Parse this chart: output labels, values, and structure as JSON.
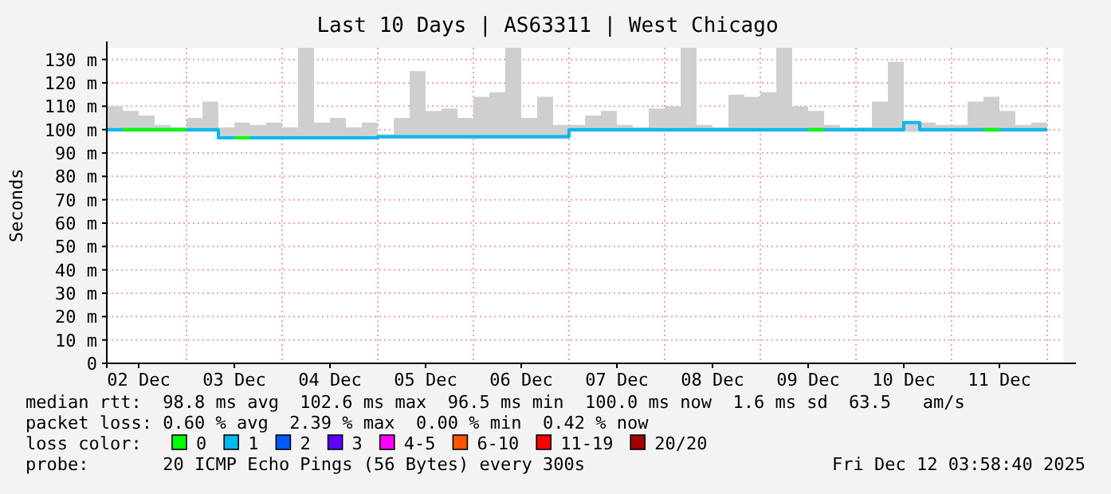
{
  "chart_data": {
    "type": "step",
    "title": "Last 10 Days | AS63311 | West Chicago",
    "ylabel": "Seconds",
    "legend_title": "loss color:",
    "x": [
      "2025-12-02T04:00",
      "2025-12-02T08:00",
      "2025-12-02T12:00",
      "2025-12-02T16:00",
      "2025-12-02T20:00",
      "2025-12-03T00:00",
      "2025-12-03T04:00",
      "2025-12-03T08:00",
      "2025-12-03T12:00",
      "2025-12-03T16:00",
      "2025-12-03T20:00",
      "2025-12-04T00:00",
      "2025-12-04T04:00",
      "2025-12-04T08:00",
      "2025-12-04T12:00",
      "2025-12-04T16:00",
      "2025-12-04T20:00",
      "2025-12-05T00:00",
      "2025-12-05T04:00",
      "2025-12-05T08:00",
      "2025-12-05T12:00",
      "2025-12-05T16:00",
      "2025-12-05T20:00",
      "2025-12-06T00:00",
      "2025-12-06T04:00",
      "2025-12-06T08:00",
      "2025-12-06T12:00",
      "2025-12-06T16:00",
      "2025-12-06T20:00",
      "2025-12-07T00:00",
      "2025-12-07T04:00",
      "2025-12-07T08:00",
      "2025-12-07T12:00",
      "2025-12-07T16:00",
      "2025-12-07T20:00",
      "2025-12-08T00:00",
      "2025-12-08T04:00",
      "2025-12-08T08:00",
      "2025-12-08T12:00",
      "2025-12-08T16:00",
      "2025-12-08T20:00",
      "2025-12-09T00:00",
      "2025-12-09T04:00",
      "2025-12-09T08:00",
      "2025-12-09T12:00",
      "2025-12-09T16:00",
      "2025-12-09T20:00",
      "2025-12-10T00:00",
      "2025-12-10T04:00",
      "2025-12-10T08:00",
      "2025-12-10T12:00",
      "2025-12-10T16:00",
      "2025-12-10T20:00",
      "2025-12-11T00:00",
      "2025-12-11T04:00",
      "2025-12-11T08:00",
      "2025-12-11T12:00",
      "2025-12-11T16:00",
      "2025-12-11T20:00",
      "2025-12-12T00:00"
    ],
    "series": [
      {
        "name": "0",
        "color": "#00ff00",
        "values": [
          null,
          100,
          100,
          100,
          100,
          100,
          null,
          null,
          96.5,
          96.5,
          null,
          null,
          null,
          null,
          null,
          null,
          null,
          null,
          null,
          null,
          null,
          null,
          null,
          null,
          null,
          null,
          null,
          null,
          null,
          null,
          null,
          null,
          null,
          null,
          null,
          null,
          null,
          null,
          null,
          null,
          null,
          null,
          null,
          null,
          100,
          100,
          null,
          null,
          null,
          null,
          null,
          null,
          null,
          null,
          null,
          100,
          100,
          null,
          null,
          null
        ]
      },
      {
        "name": "1",
        "color": "#00b8f0",
        "values": [
          100,
          100,
          100,
          100,
          100,
          100,
          100,
          96.5,
          96.5,
          96.5,
          96.5,
          96.5,
          96.5,
          96.5,
          96.5,
          96.5,
          96.5,
          97,
          97,
          97,
          97,
          97,
          97,
          97,
          97,
          97,
          97,
          97,
          97,
          100,
          100,
          100,
          100,
          100,
          100,
          100,
          100,
          100,
          100,
          100,
          100,
          100,
          100,
          100,
          100,
          100,
          100,
          100,
          100,
          100,
          103,
          100,
          100,
          100,
          100,
          100,
          100,
          100,
          100,
          100
        ],
        "lower": [
          99,
          99,
          99,
          99,
          99,
          99,
          99,
          96,
          96,
          96,
          96,
          96,
          96,
          96,
          96,
          96,
          96,
          96,
          96,
          96,
          96,
          96,
          96,
          96,
          96,
          96,
          96,
          96,
          96,
          99,
          99,
          99,
          99,
          99,
          99,
          99,
          99,
          99,
          99,
          99,
          99,
          99,
          99,
          99,
          99,
          99,
          99,
          99,
          99,
          99,
          99,
          99,
          99,
          99,
          99,
          99,
          99,
          99,
          99,
          99
        ],
        "upper": [
          110,
          108,
          106,
          102,
          101,
          105,
          112,
          101,
          103,
          102,
          103,
          101,
          135,
          103,
          105,
          101,
          103,
          98,
          105,
          125,
          108,
          109,
          105,
          114,
          116,
          135,
          105,
          114,
          102,
          102,
          106,
          108,
          102,
          101,
          109,
          110,
          135,
          102,
          101,
          115,
          114,
          116,
          135,
          110,
          108,
          102,
          101,
          101,
          112,
          129,
          103,
          103,
          102,
          102,
          112,
          114,
          108,
          102,
          103,
          101
        ]
      },
      {
        "name": "2",
        "color": "#0059ff",
        "values": [
          null,
          null,
          null,
          null,
          null,
          null,
          null,
          null,
          null,
          null,
          null,
          null,
          null,
          null,
          null,
          null,
          null,
          null,
          null,
          null,
          null,
          null,
          null,
          null,
          null,
          null,
          null,
          null,
          null,
          null,
          null,
          null,
          null,
          null,
          null,
          null,
          null,
          null,
          null,
          null,
          null,
          null,
          null,
          null,
          null,
          null,
          null,
          null,
          null,
          null,
          null,
          null,
          null,
          null,
          null,
          null,
          null,
          null,
          null,
          null
        ]
      },
      {
        "name": "3",
        "color": "#5e00ff",
        "values": [
          null,
          null,
          null,
          null,
          null,
          null,
          null,
          null,
          null,
          null,
          null,
          null,
          null,
          null,
          null,
          null,
          null,
          null,
          null,
          null,
          null,
          null,
          null,
          null,
          null,
          null,
          null,
          null,
          null,
          null,
          null,
          null,
          null,
          null,
          null,
          null,
          null,
          null,
          null,
          null,
          null,
          null,
          null,
          null,
          null,
          null,
          null,
          null,
          null,
          null,
          null,
          null,
          null,
          null,
          null,
          null,
          null,
          null,
          null,
          null
        ]
      },
      {
        "name": "4-5",
        "color": "#ff00ff",
        "values": [
          null,
          null,
          null,
          null,
          null,
          null,
          null,
          null,
          null,
          null,
          null,
          null,
          null,
          null,
          null,
          null,
          null,
          null,
          null,
          null,
          null,
          null,
          null,
          null,
          null,
          null,
          null,
          null,
          null,
          null,
          null,
          null,
          null,
          null,
          null,
          null,
          null,
          null,
          null,
          null,
          null,
          null,
          null,
          null,
          null,
          null,
          null,
          null,
          null,
          null,
          null,
          null,
          null,
          null,
          null,
          null,
          null,
          null,
          null,
          null
        ]
      },
      {
        "name": "6-10",
        "color": "#ff5500",
        "values": [
          null,
          null,
          null,
          null,
          null,
          null,
          null,
          null,
          null,
          null,
          null,
          null,
          null,
          null,
          null,
          null,
          null,
          null,
          null,
          null,
          null,
          null,
          null,
          null,
          null,
          null,
          null,
          null,
          null,
          null,
          null,
          null,
          null,
          null,
          null,
          null,
          null,
          null,
          null,
          null,
          null,
          null,
          null,
          null,
          null,
          null,
          null,
          null,
          null,
          null,
          null,
          null,
          null,
          null,
          null,
          null,
          null,
          null,
          null,
          null
        ]
      },
      {
        "name": "11-19",
        "color": "#ff0000",
        "values": [
          null,
          null,
          null,
          null,
          null,
          null,
          null,
          null,
          null,
          null,
          null,
          null,
          null,
          null,
          null,
          null,
          null,
          null,
          null,
          null,
          null,
          null,
          null,
          null,
          null,
          null,
          null,
          null,
          null,
          null,
          null,
          null,
          null,
          null,
          null,
          null,
          null,
          null,
          null,
          null,
          null,
          null,
          null,
          null,
          null,
          null,
          null,
          null,
          null,
          null,
          null,
          null,
          null,
          null,
          null,
          null,
          null,
          null,
          null,
          null
        ]
      },
      {
        "name": "20/20",
        "color": "#a10000",
        "values": [
          null,
          null,
          null,
          null,
          null,
          null,
          null,
          null,
          null,
          null,
          null,
          null,
          null,
          null,
          null,
          null,
          null,
          null,
          null,
          null,
          null,
          null,
          null,
          null,
          null,
          null,
          null,
          null,
          null,
          null,
          null,
          null,
          null,
          null,
          null,
          null,
          null,
          null,
          null,
          null,
          null,
          null,
          null,
          null,
          null,
          null,
          null,
          null,
          null,
          null,
          null,
          null,
          null,
          null,
          null,
          null,
          null,
          null,
          null,
          null
        ]
      }
    ],
    "xlim": [
      "2025-12-02T04:00",
      "2025-12-12T04:00"
    ],
    "xticks": [
      {
        "value": "2025-12-02T12:00",
        "label": "02 Dec"
      },
      {
        "value": "2025-12-03T12:00",
        "label": "03 Dec"
      },
      {
        "value": "2025-12-04T12:00",
        "label": "04 Dec"
      },
      {
        "value": "2025-12-05T12:00",
        "label": "05 Dec"
      },
      {
        "value": "2025-12-06T12:00",
        "label": "06 Dec"
      },
      {
        "value": "2025-12-07T12:00",
        "label": "07 Dec"
      },
      {
        "value": "2025-12-08T12:00",
        "label": "08 Dec"
      },
      {
        "value": "2025-12-09T12:00",
        "label": "09 Dec"
      },
      {
        "value": "2025-12-10T12:00",
        "label": "10 Dec"
      },
      {
        "value": "2025-12-11T12:00",
        "label": "11 Dec"
      }
    ],
    "ylim": [
      0,
      135
    ],
    "yticks": [
      0,
      {
        "value": 10,
        "label": "10 m"
      },
      {
        "value": 20,
        "label": "20 m"
      },
      {
        "value": 30,
        "label": "30 m"
      },
      {
        "value": 40,
        "label": "40 m"
      },
      {
        "value": 50,
        "label": "50 m"
      },
      {
        "value": 60,
        "label": "60 m"
      },
      {
        "value": 70,
        "label": "70 m"
      },
      {
        "value": 80,
        "label": "80 m"
      },
      {
        "value": 90,
        "label": "90 m"
      },
      {
        "value": 100,
        "label": "100 m"
      },
      {
        "value": 110,
        "label": "110 m"
      },
      {
        "value": 120,
        "label": "120 m"
      },
      {
        "value": 130,
        "label": "130 m"
      }
    ],
    "grid": true,
    "legend": "bottom",
    "annotations": [
      "median rtt:  98.8 ms avg  102.6 ms max  96.5 ms min  100.0 ms now  1.6 ms sd  63.5   am/s",
      "packet loss: 0.60 % avg  2.39 % max  0.00 % min  0.42 % now",
      "probe:       20 ICMP Echo Pings (56 Bytes) every 300s",
      "Fri Dec 12 03:58:40 2025"
    ]
  }
}
